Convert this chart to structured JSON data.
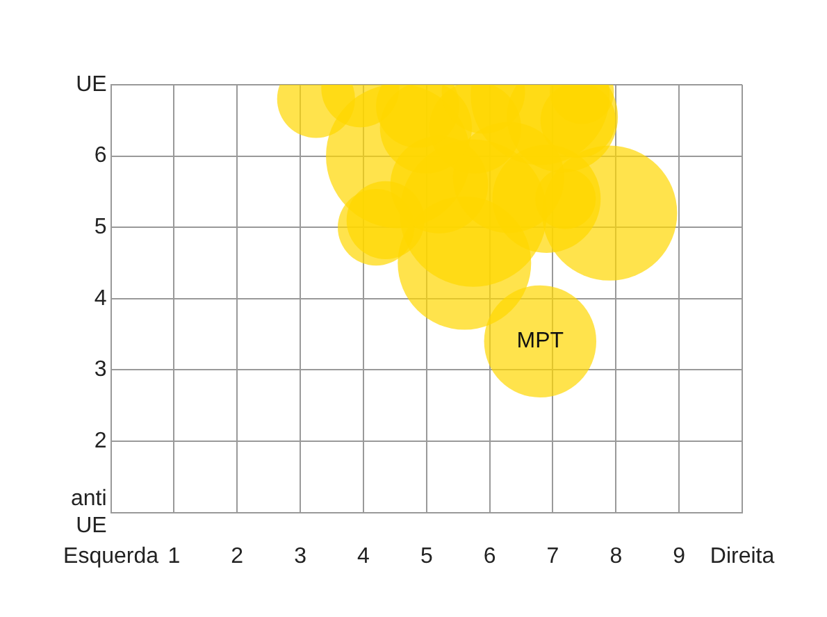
{
  "chart_data": {
    "type": "bubble",
    "x": [
      6.8,
      7.9,
      5.6,
      5.74,
      3.25,
      3.95,
      4.55,
      4.35,
      4.2,
      5.2,
      6.9,
      7.2,
      6.3,
      7.15,
      6.8,
      5.77,
      4.99,
      4.86,
      5.9,
      7.46,
      7.4
    ],
    "series": [
      {
        "color": "#ffd700",
        "values": [
          3.4,
          5.2,
          4.5,
          5.2,
          6.8,
          6.95,
          6.0,
          5.1,
          5.0,
          5.6,
          5.4,
          5.4,
          5.7,
          6.55,
          6.85,
          6.4,
          6.4,
          6.7,
          6.9,
          6.9,
          6.5
        ],
        "sizes": [
          0.58,
          0.84,
          0.82,
          1,
          0.28,
          0.28,
          0.96,
          0.28,
          0.27,
          0.44,
          0.54,
          0.17,
          0.57,
          0.57,
          0.89,
          0.39,
          0.39,
          0.32,
          0.32,
          0.19,
          0.26
        ]
      }
    ],
    "xlim": [
      0,
      10
    ],
    "xticks": [
      {
        "value": 0,
        "label": "Esquerda"
      },
      1,
      2,
      3,
      4,
      5,
      6,
      7,
      8,
      9,
      {
        "value": 10,
        "label": "Direita"
      }
    ],
    "ylim": [
      1,
      7
    ],
    "yticks": [
      {
        "value": 1,
        "label": "anti UE"
      },
      2,
      3,
      4,
      5,
      6,
      {
        "value": 7,
        "label": "UE"
      }
    ],
    "grid": true,
    "legend": false,
    "annotations": [
      {
        "text": "MPT",
        "x": 6.8,
        "y": 3.4
      }
    ]
  }
}
